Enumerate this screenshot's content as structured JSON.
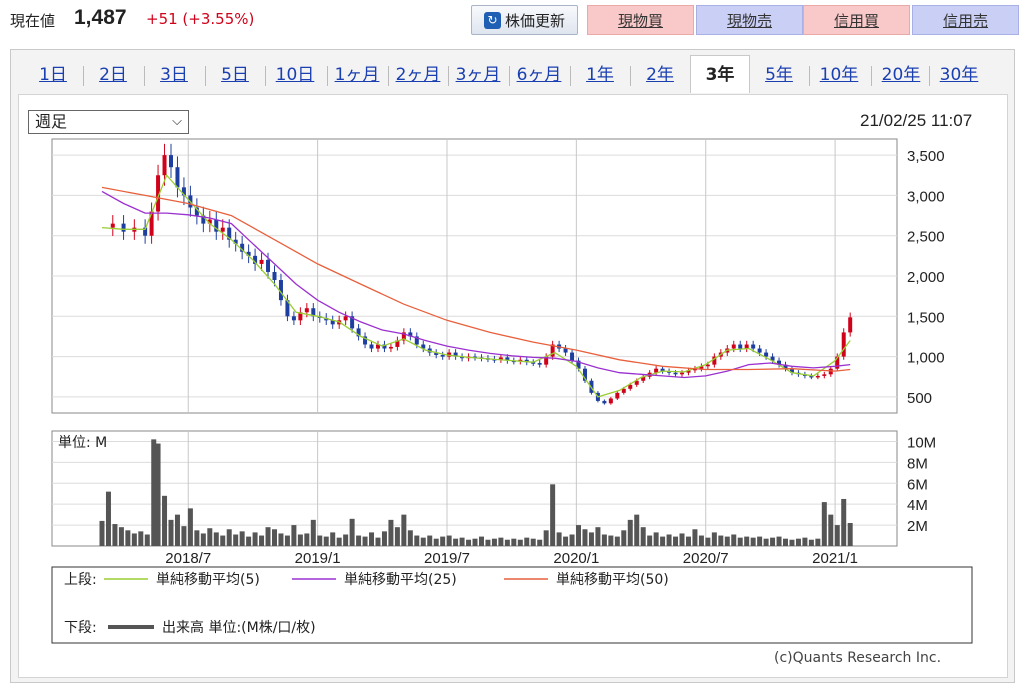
{
  "quote": {
    "label": "現在値",
    "price": "1,487",
    "change": "+51 (+3.55%)",
    "refresh_label": "株価更新",
    "buttons": [
      "現物買",
      "現物売",
      "信用買",
      "信用売"
    ]
  },
  "tabs": [
    "1日",
    "2日",
    "3日",
    "5日",
    "10日",
    "1ヶ月",
    "2ヶ月",
    "3ヶ月",
    "6ヶ月",
    "1年",
    "2年",
    "3年",
    "5年",
    "10年",
    "20年",
    "30年"
  ],
  "active_tab": "3年",
  "period_select": "週足",
  "timestamp": "21/02/25 11:07",
  "copyright": "(c)Quants Research Inc.",
  "colors": {
    "candle_up": "#d0021b",
    "candle_down": "#1f3fa0",
    "ma5": "#9acd32",
    "ma25": "#9b30d0",
    "ma50": "#e8603c",
    "volume": "#555555"
  },
  "chart_data": [
    {
      "type": "line",
      "panel": "price",
      "y_ticks": [
        "3,500",
        "3,000",
        "2,500",
        "2,000",
        "1,500",
        "1,000",
        "500"
      ],
      "y_tick_values": [
        3500,
        3000,
        2500,
        2000,
        1500,
        1000,
        500
      ],
      "ylim": [
        300,
        3700
      ],
      "x_ticks": [
        "2018/7",
        "2019/1",
        "2019/7",
        "2020/1",
        "2020/7",
        "2021/1"
      ],
      "x_tick_months": [
        4,
        10,
        16,
        22,
        28,
        34
      ],
      "xlim": [
        0,
        36.5
      ],
      "price_close": [
        [
          0,
          2600
        ],
        [
          0.5,
          2650
        ],
        [
          1,
          2550
        ],
        [
          1.5,
          2600
        ],
        [
          2,
          2500
        ],
        [
          2.3,
          2800
        ],
        [
          2.6,
          3250
        ],
        [
          2.9,
          3500
        ],
        [
          3.2,
          3350
        ],
        [
          3.5,
          3100
        ],
        [
          3.8,
          3000
        ],
        [
          4.1,
          2850
        ],
        [
          4.4,
          2750
        ],
        [
          4.7,
          2650
        ],
        [
          5,
          2700
        ],
        [
          5.3,
          2550
        ],
        [
          5.6,
          2600
        ],
        [
          5.9,
          2450
        ],
        [
          6.2,
          2400
        ],
        [
          6.5,
          2300
        ],
        [
          6.8,
          2250
        ],
        [
          7.1,
          2150
        ],
        [
          7.4,
          2200
        ],
        [
          7.7,
          2050
        ],
        [
          8,
          1950
        ],
        [
          8.3,
          1700
        ],
        [
          8.6,
          1500
        ],
        [
          8.9,
          1450
        ],
        [
          9.2,
          1550
        ],
        [
          9.5,
          1600
        ],
        [
          9.8,
          1500
        ],
        [
          10.1,
          1480
        ],
        [
          10.4,
          1450
        ],
        [
          10.7,
          1400
        ],
        [
          11,
          1450
        ],
        [
          11.3,
          1500
        ],
        [
          11.6,
          1350
        ],
        [
          11.9,
          1250
        ],
        [
          12.2,
          1150
        ],
        [
          12.5,
          1100
        ],
        [
          12.8,
          1150
        ],
        [
          13.1,
          1100
        ],
        [
          13.4,
          1120
        ],
        [
          13.7,
          1200
        ],
        [
          14,
          1300
        ],
        [
          14.3,
          1250
        ],
        [
          14.6,
          1150
        ],
        [
          14.9,
          1100
        ],
        [
          15.2,
          1050
        ],
        [
          15.5,
          1020
        ],
        [
          15.8,
          1000
        ],
        [
          16.1,
          1050
        ],
        [
          16.4,
          1000
        ],
        [
          16.7,
          980
        ],
        [
          17,
          1000
        ],
        [
          17.3,
          990
        ],
        [
          17.6,
          980
        ],
        [
          17.9,
          970
        ],
        [
          18.2,
          960
        ],
        [
          18.5,
          990
        ],
        [
          18.8,
          950
        ],
        [
          19.1,
          940
        ],
        [
          19.4,
          960
        ],
        [
          19.7,
          930
        ],
        [
          20,
          920
        ],
        [
          20.3,
          900
        ],
        [
          20.6,
          1000
        ],
        [
          20.9,
          1150
        ],
        [
          21.2,
          1100
        ],
        [
          21.5,
          1050
        ],
        [
          21.8,
          950
        ],
        [
          22.1,
          850
        ],
        [
          22.4,
          700
        ],
        [
          22.7,
          550
        ],
        [
          23,
          450
        ],
        [
          23.3,
          420
        ],
        [
          23.6,
          480
        ],
        [
          23.9,
          550
        ],
        [
          24.2,
          600
        ],
        [
          24.5,
          650
        ],
        [
          24.8,
          700
        ],
        [
          25.1,
          750
        ],
        [
          25.4,
          800
        ],
        [
          25.7,
          850
        ],
        [
          26,
          820
        ],
        [
          26.3,
          800
        ],
        [
          26.6,
          780
        ],
        [
          26.9,
          800
        ],
        [
          27.2,
          830
        ],
        [
          27.5,
          850
        ],
        [
          27.8,
          880
        ],
        [
          28.1,
          900
        ],
        [
          28.4,
          1000
        ],
        [
          28.7,
          1050
        ],
        [
          29,
          1100
        ],
        [
          29.3,
          1150
        ],
        [
          29.6,
          1100
        ],
        [
          29.9,
          1150
        ],
        [
          30.2,
          1100
        ],
        [
          30.5,
          1050
        ],
        [
          30.8,
          1000
        ],
        [
          31.1,
          950
        ],
        [
          31.4,
          900
        ],
        [
          31.7,
          850
        ],
        [
          32,
          800
        ],
        [
          32.3,
          780
        ],
        [
          32.6,
          760
        ],
        [
          32.9,
          750
        ],
        [
          33.2,
          760
        ],
        [
          33.5,
          780
        ],
        [
          33.8,
          850
        ],
        [
          34.1,
          1000
        ],
        [
          34.4,
          1300
        ],
        [
          34.7,
          1487
        ]
      ],
      "series": [
        {
          "name": "単純移動平均(5)",
          "values": [
            [
              0,
              2600
            ],
            [
              1,
              2580
            ],
            [
              2,
              2580
            ],
            [
              3,
              3250
            ],
            [
              4,
              2950
            ],
            [
              5,
              2650
            ],
            [
              6,
              2450
            ],
            [
              7,
              2200
            ],
            [
              8,
              1900
            ],
            [
              9,
              1550
            ],
            [
              10,
              1500
            ],
            [
              11,
              1430
            ],
            [
              12,
              1250
            ],
            [
              13,
              1130
            ],
            [
              14,
              1220
            ],
            [
              15,
              1080
            ],
            [
              16,
              1020
            ],
            [
              17,
              990
            ],
            [
              18,
              970
            ],
            [
              19,
              950
            ],
            [
              20,
              930
            ],
            [
              21,
              1050
            ],
            [
              22,
              880
            ],
            [
              23,
              500
            ],
            [
              24,
              580
            ],
            [
              25,
              740
            ],
            [
              26,
              820
            ],
            [
              27,
              810
            ],
            [
              28,
              900
            ],
            [
              29,
              1080
            ],
            [
              30,
              1100
            ],
            [
              31,
              960
            ],
            [
              32,
              800
            ],
            [
              33,
              760
            ],
            [
              34,
              950
            ],
            [
              34.7,
              1200
            ]
          ]
        },
        {
          "name": "単純移動平均(25)",
          "values": [
            [
              0,
              3050
            ],
            [
              1,
              2900
            ],
            [
              2,
              2780
            ],
            [
              3,
              2780
            ],
            [
              4,
              2760
            ],
            [
              5,
              2720
            ],
            [
              6,
              2650
            ],
            [
              7,
              2400
            ],
            [
              8,
              2150
            ],
            [
              9,
              1900
            ],
            [
              10,
              1700
            ],
            [
              11,
              1550
            ],
            [
              12,
              1430
            ],
            [
              13,
              1330
            ],
            [
              14,
              1280
            ],
            [
              15,
              1200
            ],
            [
              16,
              1130
            ],
            [
              17,
              1080
            ],
            [
              18,
              1040
            ],
            [
              19,
              1010
            ],
            [
              20,
              990
            ],
            [
              21,
              980
            ],
            [
              22,
              940
            ],
            [
              23,
              860
            ],
            [
              24,
              800
            ],
            [
              25,
              780
            ],
            [
              26,
              760
            ],
            [
              27,
              740
            ],
            [
              28,
              760
            ],
            [
              29,
              820
            ],
            [
              30,
              900
            ],
            [
              31,
              920
            ],
            [
              32,
              880
            ],
            [
              33,
              860
            ],
            [
              34,
              880
            ],
            [
              34.7,
              900
            ]
          ]
        },
        {
          "name": "単純移動平均(50)",
          "values": [
            [
              0,
              3100
            ],
            [
              2,
              3000
            ],
            [
              4,
              2900
            ],
            [
              6,
              2750
            ],
            [
              8,
              2450
            ],
            [
              10,
              2150
            ],
            [
              12,
              1900
            ],
            [
              14,
              1650
            ],
            [
              16,
              1450
            ],
            [
              18,
              1300
            ],
            [
              20,
              1180
            ],
            [
              22,
              1080
            ],
            [
              24,
              960
            ],
            [
              26,
              880
            ],
            [
              28,
              840
            ],
            [
              30,
              840
            ],
            [
              32,
              850
            ],
            [
              34,
              820
            ],
            [
              34.7,
              840
            ]
          ]
        }
      ]
    },
    {
      "type": "bar",
      "panel": "volume",
      "unit_label": "単位: M",
      "y_ticks": [
        "10M",
        "8M",
        "6M",
        "4M",
        "2M"
      ],
      "y_tick_values": [
        10,
        8,
        6,
        4,
        2
      ],
      "ylim": [
        0,
        11
      ],
      "values": [
        [
          0,
          2.4
        ],
        [
          0.3,
          5.2
        ],
        [
          0.6,
          2.1
        ],
        [
          0.9,
          1.8
        ],
        [
          1.2,
          1.5
        ],
        [
          1.5,
          1.2
        ],
        [
          1.8,
          1.4
        ],
        [
          2.1,
          1.1
        ],
        [
          2.4,
          10.2
        ],
        [
          2.6,
          9.8
        ],
        [
          2.9,
          4.8
        ],
        [
          3.2,
          2.5
        ],
        [
          3.5,
          3.0
        ],
        [
          3.8,
          1.9
        ],
        [
          4.1,
          3.6
        ],
        [
          4.4,
          1.5
        ],
        [
          4.7,
          1.2
        ],
        [
          5,
          1.7
        ],
        [
          5.3,
          1.3
        ],
        [
          5.6,
          1.0
        ],
        [
          5.9,
          1.6
        ],
        [
          6.2,
          1.1
        ],
        [
          6.5,
          1.4
        ],
        [
          6.8,
          0.9
        ],
        [
          7.1,
          1.3
        ],
        [
          7.4,
          1.0
        ],
        [
          7.7,
          1.8
        ],
        [
          8,
          1.6
        ],
        [
          8.3,
          1.2
        ],
        [
          8.6,
          1.0
        ],
        [
          8.9,
          2.0
        ],
        [
          9.2,
          1.1
        ],
        [
          9.5,
          1.2
        ],
        [
          9.8,
          2.5
        ],
        [
          10.1,
          1.0
        ],
        [
          10.4,
          0.9
        ],
        [
          10.7,
          1.3
        ],
        [
          11,
          0.8
        ],
        [
          11.3,
          1.1
        ],
        [
          11.6,
          2.6
        ],
        [
          11.9,
          1.0
        ],
        [
          12.2,
          0.9
        ],
        [
          12.5,
          1.3
        ],
        [
          12.8,
          0.8
        ],
        [
          13.1,
          1.4
        ],
        [
          13.4,
          2.5
        ],
        [
          13.7,
          1.8
        ],
        [
          14,
          3.0
        ],
        [
          14.3,
          1.5
        ],
        [
          14.6,
          1.0
        ],
        [
          14.9,
          0.8
        ],
        [
          15.2,
          1.0
        ],
        [
          15.5,
          0.7
        ],
        [
          15.8,
          0.9
        ],
        [
          16.1,
          1.0
        ],
        [
          16.4,
          0.7
        ],
        [
          16.7,
          0.8
        ],
        [
          17,
          0.6
        ],
        [
          17.3,
          0.7
        ],
        [
          17.6,
          0.9
        ],
        [
          17.9,
          0.6
        ],
        [
          18.2,
          0.7
        ],
        [
          18.5,
          0.8
        ],
        [
          18.8,
          0.6
        ],
        [
          19.1,
          0.7
        ],
        [
          19.4,
          0.6
        ],
        [
          19.7,
          0.8
        ],
        [
          20,
          0.7
        ],
        [
          20.3,
          0.6
        ],
        [
          20.6,
          1.5
        ],
        [
          20.9,
          5.9
        ],
        [
          21.2,
          1.3
        ],
        [
          21.5,
          0.9
        ],
        [
          21.8,
          1.1
        ],
        [
          22.1,
          2.0
        ],
        [
          22.4,
          1.6
        ],
        [
          22.7,
          1.3
        ],
        [
          23,
          1.8
        ],
        [
          23.3,
          1.1
        ],
        [
          23.6,
          1.0
        ],
        [
          23.9,
          0.9
        ],
        [
          24.2,
          1.5
        ],
        [
          24.5,
          2.5
        ],
        [
          24.8,
          3.0
        ],
        [
          25.1,
          1.8
        ],
        [
          25.4,
          1.0
        ],
        [
          25.7,
          1.3
        ],
        [
          26,
          0.9
        ],
        [
          26.3,
          1.1
        ],
        [
          26.6,
          0.9
        ],
        [
          26.9,
          1.2
        ],
        [
          27.2,
          0.9
        ],
        [
          27.5,
          1.6
        ],
        [
          27.8,
          1.0
        ],
        [
          28.1,
          0.8
        ],
        [
          28.4,
          1.3
        ],
        [
          28.7,
          1.0
        ],
        [
          29,
          0.9
        ],
        [
          29.3,
          1.1
        ],
        [
          29.6,
          0.8
        ],
        [
          29.9,
          0.9
        ],
        [
          30.2,
          0.8
        ],
        [
          30.5,
          0.9
        ],
        [
          30.8,
          0.7
        ],
        [
          31.1,
          0.8
        ],
        [
          31.4,
          0.9
        ],
        [
          31.7,
          0.7
        ],
        [
          32,
          0.6
        ],
        [
          32.3,
          0.7
        ],
        [
          32.6,
          0.8
        ],
        [
          32.9,
          0.6
        ],
        [
          33.2,
          0.7
        ],
        [
          33.5,
          4.2
        ],
        [
          33.8,
          3.0
        ],
        [
          34.1,
          2.0
        ],
        [
          34.4,
          4.5
        ],
        [
          34.7,
          2.2
        ]
      ]
    }
  ],
  "legend": {
    "upper_label": "上段:",
    "lower_label": "下段:",
    "items": [
      "単純移動平均(5)",
      "単純移動平均(25)",
      "単純移動平均(50)"
    ],
    "volume_item": "出来高 単位:(M株/口/枚)"
  }
}
